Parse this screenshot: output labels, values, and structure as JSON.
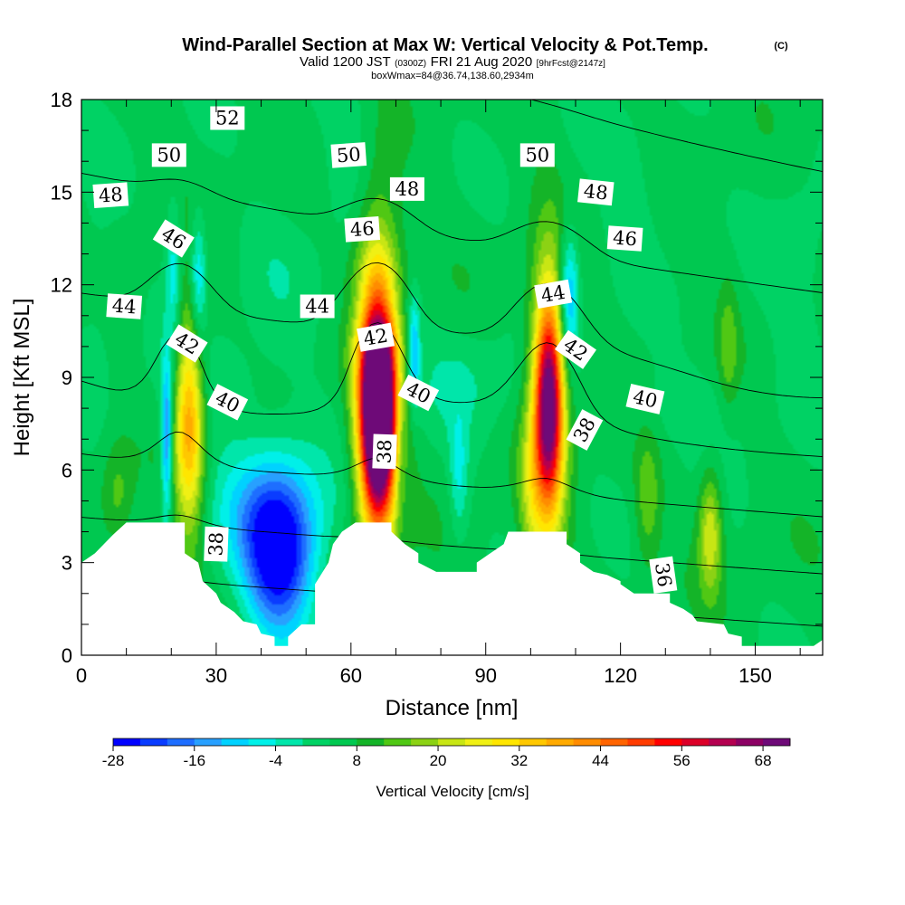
{
  "chart_data": {
    "type": "heatmap",
    "title": "Wind-Parallel Section at Max W: Vertical Velocity & Pot.Temp.",
    "title_mark": "(C)",
    "subtitle": {
      "valid_prefix": "Valid 1200 JST",
      "utc": "(0300Z)",
      "date": "FRI 21 Aug 2020",
      "forecast": "[9hrFcst@2147z]"
    },
    "box_info": "boxWmax=84@36.74,138.60,2934m",
    "xlabel": "Distance [nm]",
    "ylabel": "Height [Kft MSL]",
    "xlim": [
      0,
      165
    ],
    "ylim": [
      0,
      18
    ],
    "x_ticks": [
      0,
      30,
      60,
      90,
      120,
      150
    ],
    "y_ticks": [
      0,
      3,
      6,
      9,
      12,
      15,
      18
    ],
    "colorbar": {
      "label": "Vertical Velocity [cm/s]",
      "min": -28,
      "max": 72,
      "step": 4,
      "tick_values": [
        -28,
        -16,
        -4,
        8,
        20,
        32,
        44,
        56,
        68
      ],
      "tick_labels": [
        "-28",
        "-16",
        "-4",
        "8",
        "20",
        "32",
        "44",
        "56",
        "68"
      ],
      "colors": [
        "#0000ff",
        "#0a3cff",
        "#1e6eff",
        "#28a0ff",
        "#00d2ff",
        "#00f0e8",
        "#00e6aa",
        "#00d264",
        "#00c850",
        "#14b428",
        "#50c814",
        "#8cd214",
        "#c8e614",
        "#f0f014",
        "#ffe600",
        "#ffc800",
        "#ffaa00",
        "#ff8c00",
        "#ff6400",
        "#ff3c00",
        "#ff0000",
        "#dc0028",
        "#b40050",
        "#8c0064",
        "#6e0a78"
      ]
    },
    "terrain_height_kft": [
      [
        0,
        3.0
      ],
      [
        3,
        3.3
      ],
      [
        7,
        3.9
      ],
      [
        10,
        4.3
      ],
      [
        17,
        4.3
      ],
      [
        23,
        4.3
      ],
      [
        23,
        3.3
      ],
      [
        26,
        3.0
      ],
      [
        27,
        2.4
      ],
      [
        30,
        2.0
      ],
      [
        31,
        1.7
      ],
      [
        34,
        1.4
      ],
      [
        36,
        1.1
      ],
      [
        39,
        1.0
      ],
      [
        40,
        0.7
      ],
      [
        43,
        0.6
      ],
      [
        43,
        0.3
      ],
      [
        46,
        0.3
      ],
      [
        46,
        0.6
      ],
      [
        49,
        1.0
      ],
      [
        52,
        1.0
      ],
      [
        52,
        2.3
      ],
      [
        55,
        3.0
      ],
      [
        56,
        3.6
      ],
      [
        58,
        4.0
      ],
      [
        61,
        4.3
      ],
      [
        69,
        4.3
      ],
      [
        69,
        4.0
      ],
      [
        72,
        3.6
      ],
      [
        75,
        3.3
      ],
      [
        75,
        3.0
      ],
      [
        79,
        2.7
      ],
      [
        88,
        2.7
      ],
      [
        88,
        3.0
      ],
      [
        91,
        3.3
      ],
      [
        94,
        3.6
      ],
      [
        95,
        4.0
      ],
      [
        108,
        4.0
      ],
      [
        108,
        3.6
      ],
      [
        111,
        3.3
      ],
      [
        111,
        3.0
      ],
      [
        114,
        2.7
      ],
      [
        117,
        2.6
      ],
      [
        120,
        2.4
      ],
      [
        120,
        2.3
      ],
      [
        123,
        2.0
      ],
      [
        131,
        2.0
      ],
      [
        131,
        1.7
      ],
      [
        134,
        1.5
      ],
      [
        136,
        1.3
      ],
      [
        137,
        1.1
      ],
      [
        143,
        1.0
      ],
      [
        144,
        0.7
      ],
      [
        147,
        0.6
      ],
      [
        147,
        0.3
      ],
      [
        163,
        0.3
      ],
      [
        165,
        0.5
      ]
    ],
    "vertical_velocity_features": [
      {
        "x": 66,
        "y": 7.8,
        "sx": 2.6,
        "sy": 2.3,
        "w": 78
      },
      {
        "x": 66,
        "y": 9.0,
        "sx": 3.6,
        "sy": 3.6,
        "w": 36
      },
      {
        "x": 104,
        "y": 8.2,
        "sx": 2.1,
        "sy": 2.2,
        "w": 52
      },
      {
        "x": 104,
        "y": 8.0,
        "sx": 3.2,
        "sy": 3.6,
        "w": 22
      },
      {
        "x": 24,
        "y": 8.0,
        "sx": 2.2,
        "sy": 2.2,
        "w": 26
      },
      {
        "x": 24,
        "y": 6.5,
        "sx": 2.6,
        "sy": 3.2,
        "w": 10
      },
      {
        "x": 44,
        "y": 3.0,
        "sx": 5.5,
        "sy": 1.8,
        "w": -30
      },
      {
        "x": 42,
        "y": 4.6,
        "sx": 9.0,
        "sy": 1.6,
        "w": -14
      },
      {
        "x": 19,
        "y": 7.0,
        "sx": 0.9,
        "sy": 1.8,
        "w": -24
      },
      {
        "x": 26,
        "y": 12.2,
        "sx": 1.3,
        "sy": 1.5,
        "w": -16
      },
      {
        "x": 20.5,
        "y": 12.5,
        "sx": 1.2,
        "sy": 1.6,
        "w": -12
      },
      {
        "x": 108.5,
        "y": 11.6,
        "sx": 1.6,
        "sy": 1.5,
        "w": -22
      },
      {
        "x": 74,
        "y": 9.8,
        "sx": 0.9,
        "sy": 1.2,
        "w": -18
      },
      {
        "x": 71,
        "y": 6.5,
        "sx": 1.0,
        "sy": 1.5,
        "w": -8
      },
      {
        "x": 84,
        "y": 5.8,
        "sx": 1.5,
        "sy": 1.4,
        "w": -10
      },
      {
        "x": 66,
        "y": 11.2,
        "sx": 5.0,
        "sy": 0.7,
        "w": -6
      },
      {
        "x": 45,
        "y": 12.5,
        "sx": 7.0,
        "sy": 1.8,
        "w": -3
      },
      {
        "x": 30,
        "y": 8.7,
        "sx": 10.0,
        "sy": 1.2,
        "w": -5
      },
      {
        "x": 86,
        "y": 9.0,
        "sx": 9.0,
        "sy": 1.3,
        "w": -5
      },
      {
        "x": 132,
        "y": 8.0,
        "sx": 12.0,
        "sy": 1.0,
        "w": -4
      },
      {
        "x": 160,
        "y": 12.0,
        "sx": 5.0,
        "sy": 3.0,
        "w": -4
      },
      {
        "x": 60,
        "y": 16.5,
        "sx": 5.0,
        "sy": 2.0,
        "w": -4
      },
      {
        "x": 122,
        "y": 15.0,
        "sx": 5.0,
        "sy": 2.0,
        "w": -4
      },
      {
        "x": 3,
        "y": 12.0,
        "sx": 3.0,
        "sy": 3.0,
        "w": -3
      },
      {
        "x": 140,
        "y": 4.0,
        "sx": 1.8,
        "sy": 1.4,
        "w": 18
      },
      {
        "x": 126,
        "y": 5.0,
        "sx": 2.0,
        "sy": 1.5,
        "w": 10
      },
      {
        "x": 100,
        "y": 5.0,
        "sx": 2.0,
        "sy": 2.0,
        "w": 10
      },
      {
        "x": 8,
        "y": 5.2,
        "sx": 2.5,
        "sy": 1.2,
        "w": 8
      },
      {
        "x": 144,
        "y": 10.0,
        "sx": 1.5,
        "sy": 1.5,
        "w": 8
      }
    ],
    "potential_temperature": {
      "unit": "C",
      "interval": 1,
      "levels": [
        36,
        37,
        38,
        39,
        40,
        41,
        42,
        43,
        44,
        45,
        46,
        47,
        48,
        49,
        50,
        51,
        52
      ],
      "labels": [
        {
          "text": "52",
          "x": 32.5,
          "y": 17.4,
          "angle": 0
        },
        {
          "text": "50",
          "x": 19.5,
          "y": 16.2,
          "angle": 0
        },
        {
          "text": "50",
          "x": 59.5,
          "y": 16.2,
          "angle": -4
        },
        {
          "text": "50",
          "x": 101.5,
          "y": 16.2,
          "angle": 0
        },
        {
          "text": "48",
          "x": 6.5,
          "y": 14.9,
          "angle": -4
        },
        {
          "text": "48",
          "x": 72.5,
          "y": 15.1,
          "angle": 0
        },
        {
          "text": "48",
          "x": 114.5,
          "y": 15.0,
          "angle": 6
        },
        {
          "text": "46",
          "x": 20.5,
          "y": 13.5,
          "angle": 32
        },
        {
          "text": "46",
          "x": 62.5,
          "y": 13.8,
          "angle": -4
        },
        {
          "text": "46",
          "x": 121.0,
          "y": 13.5,
          "angle": 4
        },
        {
          "text": "44",
          "x": 9.5,
          "y": 11.3,
          "angle": 4
        },
        {
          "text": "44",
          "x": 52.5,
          "y": 11.3,
          "angle": 0
        },
        {
          "text": "44",
          "x": 105.0,
          "y": 11.7,
          "angle": -10
        },
        {
          "text": "42",
          "x": 23.5,
          "y": 10.1,
          "angle": 32
        },
        {
          "text": "42",
          "x": 65.5,
          "y": 10.3,
          "angle": -10
        },
        {
          "text": "42",
          "x": 110.0,
          "y": 9.9,
          "angle": 35
        },
        {
          "text": "40",
          "x": 32.5,
          "y": 8.2,
          "angle": 27
        },
        {
          "text": "40",
          "x": 75.0,
          "y": 8.5,
          "angle": 27
        },
        {
          "text": "40",
          "x": 125.5,
          "y": 8.3,
          "angle": 13
        },
        {
          "text": "38",
          "x": 30.0,
          "y": 3.6,
          "angle": -88
        },
        {
          "text": "38",
          "x": 67.5,
          "y": 6.6,
          "angle": -88
        },
        {
          "text": "38",
          "x": 112.0,
          "y": 7.3,
          "angle": -62
        },
        {
          "text": "36",
          "x": 129.5,
          "y": 2.6,
          "angle": 82
        }
      ]
    }
  }
}
